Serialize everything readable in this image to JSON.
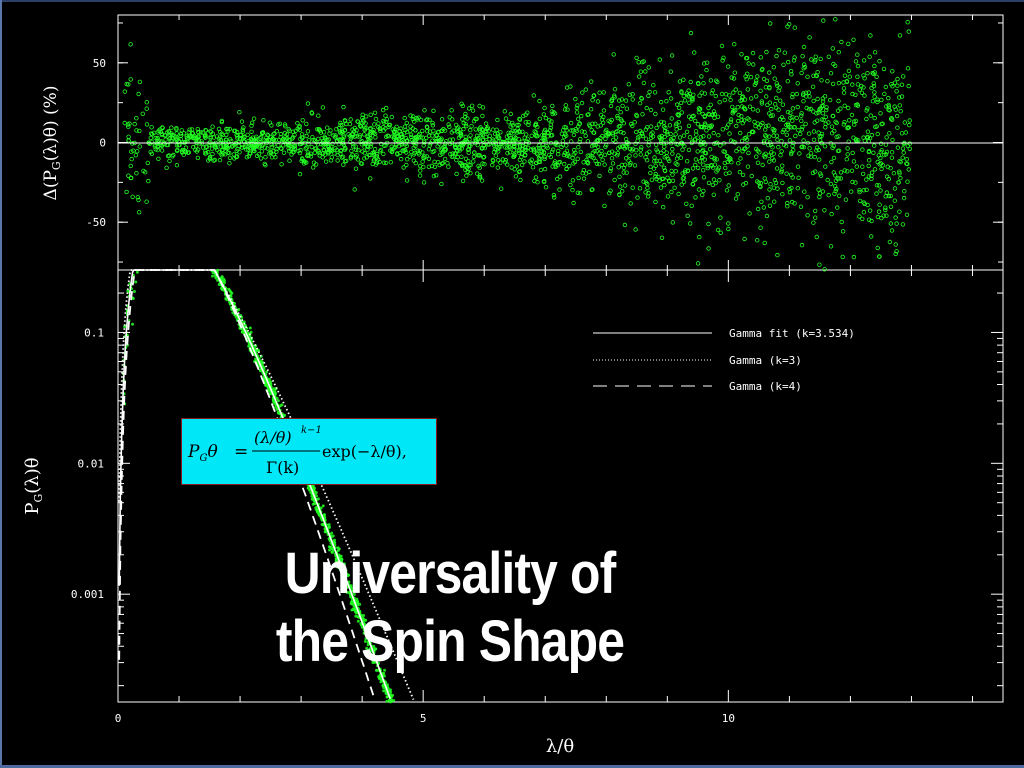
{
  "slide": {
    "title_line1": "Universality of",
    "title_line2": "the Spin Shape"
  },
  "formula": {
    "lhs_p": "P",
    "lhs_sub": "G",
    "lhs_theta": "θ",
    "equals": "=",
    "numerator": "(λ/θ)",
    "exponent": "k−1",
    "denominator": "Γ(k)",
    "tail": "exp(−λ/θ),"
  },
  "chart_data": [
    {
      "type": "scatter",
      "panel": "top",
      "ylabel": "Δ(P_G(λ)θ) (%)",
      "xlim": [
        0,
        14.5
      ],
      "ylim": [
        -80,
        80
      ],
      "y_ticks": [
        50,
        0,
        -50
      ],
      "y_tick_labels": [
        "50",
        "0",
        "-50"
      ],
      "reference_line_y": 0,
      "series": [
        {
          "color": "#22ff22",
          "points_x": [
            0.1,
            0.15,
            0.2,
            0.25,
            0.3,
            0.4,
            0.5,
            0.6,
            0.8,
            1.0,
            1.2,
            1.5,
            2.0,
            2.5,
            3.0,
            3.5,
            4.0,
            4.5,
            5.0,
            5.5,
            6.0,
            6.5,
            7.0,
            7.5,
            8.0,
            8.5,
            9.0,
            9.5,
            10.0,
            10.5,
            11.0,
            11.5,
            12.0,
            12.5,
            13.0
          ],
          "points_y": [
            60,
            45,
            30,
            20,
            15,
            8,
            5,
            3,
            2,
            1,
            0,
            -1,
            -2,
            -1,
            0,
            0,
            -1,
            -2,
            -3,
            -4,
            -5,
            -3,
            -4,
            -2,
            0,
            3,
            8,
            10,
            15,
            20,
            25,
            30,
            10,
            -20,
            -30
          ]
        }
      ]
    },
    {
      "type": "line",
      "panel": "bottom",
      "xlabel": "λ/θ",
      "ylabel": "P_G(λ)θ",
      "xlim": [
        0,
        14.5
      ],
      "ylim": [
        0.00015,
        0.3
      ],
      "y_scale": "log",
      "x_ticks": [
        0,
        5,
        10
      ],
      "x_tick_labels": [
        "0",
        "5",
        "10"
      ],
      "y_ticks": [
        0.1,
        0.01,
        0.001
      ],
      "y_tick_labels": [
        "0.1",
        "0.01",
        "0.001"
      ],
      "legend_position": "top-right",
      "series": [
        {
          "name": "Gamma fit (k=3.534)",
          "k": 3.534,
          "style": "solid",
          "color": "#ffffff"
        },
        {
          "name": "Gamma (k=3)",
          "k": 3,
          "style": "dotted",
          "color": "#ffffff"
        },
        {
          "name": "Gamma (k=4)",
          "k": 4,
          "style": "dashed",
          "color": "#ffffff"
        }
      ],
      "scatter_color": "#22ff22"
    }
  ]
}
